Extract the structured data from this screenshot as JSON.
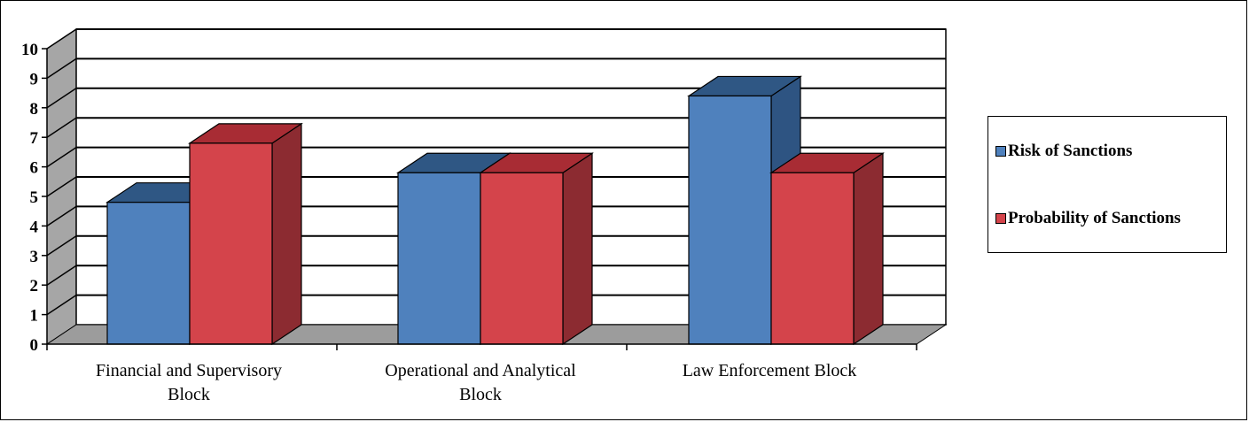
{
  "chart_data": {
    "type": "bar",
    "categories": [
      "Financial and Supervisory Block",
      "Operational and Analytical Block",
      "Law Enforcement Block"
    ],
    "series": [
      {
        "name": "Risk of Sanctions",
        "values": [
          4.8,
          5.8,
          8.4
        ],
        "color": "#4f81bd",
        "top_color": "#2f5784",
        "side_color": "#2e5482"
      },
      {
        "name": "Probability of Sanctions",
        "values": [
          6.8,
          5.8,
          5.8
        ],
        "color": "#d4444b",
        "top_color": "#a82c34",
        "side_color": "#8c2b31"
      }
    ],
    "yticks": [
      "0",
      "1",
      "2",
      "3",
      "4",
      "5",
      "6",
      "7",
      "8",
      "9",
      "10"
    ],
    "ylim": [
      0,
      10
    ],
    "grid": true,
    "legend_position": "right",
    "floor_color": "#9c9c9c",
    "wall_color": "#a6a6a6"
  }
}
